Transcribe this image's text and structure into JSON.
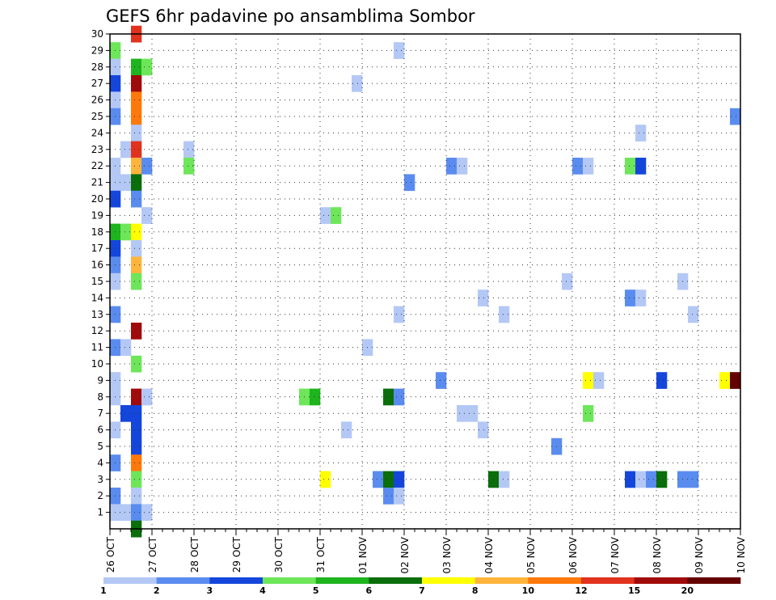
{
  "chart_data": {
    "type": "heatmap",
    "title": "GEFS 6hr padavine po ansamblima Sombor",
    "xlabel": "",
    "ylabel": "",
    "x_tick_labels": [
      "26 OCT",
      "27 OCT",
      "28 OCT",
      "29 OCT",
      "30 OCT",
      "31 OCT",
      "01 NOV",
      "02 NOV",
      "03 NOV",
      "04 NOV",
      "05 NOV",
      "06 NOV",
      "07 NOV",
      "08 NOV",
      "09 NOV",
      "10 NOV"
    ],
    "y_tick_labels": [
      "1",
      "2",
      "3",
      "4",
      "5",
      "6",
      "7",
      "8",
      "9",
      "10",
      "11",
      "12",
      "13",
      "14",
      "15",
      "16",
      "17",
      "18",
      "19",
      "20",
      "21",
      "22",
      "23",
      "24",
      "25",
      "26",
      "27",
      "28",
      "29",
      "30"
    ],
    "x_steps_per_day": 4,
    "y_range": [
      1,
      30
    ],
    "grid": true,
    "legend_position": "bottom",
    "colorbar": {
      "labels": [
        "1",
        "2",
        "3",
        "4",
        "5",
        "6",
        "7",
        "8",
        "10",
        "12",
        "15",
        "20"
      ],
      "colors": [
        "#b4c8f5",
        "#5a8cf0",
        "#1446dc",
        "#6ee65a",
        "#1eb41e",
        "#0a6e0a",
        "#ffff00",
        "#ffb43c",
        "#ff780a",
        "#e1321e",
        "#a00a0a",
        "#640000"
      ]
    },
    "cells": [
      {
        "x": 0,
        "y": 29,
        "c": 3
      },
      {
        "x": 0,
        "y": 28,
        "c": 0
      },
      {
        "x": 0,
        "y": 27,
        "c": 2
      },
      {
        "x": 0,
        "y": 26,
        "c": 0
      },
      {
        "x": 0,
        "y": 25,
        "c": 1
      },
      {
        "x": 0,
        "y": 22,
        "c": 0
      },
      {
        "x": 0,
        "y": 21,
        "c": 0
      },
      {
        "x": 0,
        "y": 20,
        "c": 2
      },
      {
        "x": 0,
        "y": 18,
        "c": 4
      },
      {
        "x": 0,
        "y": 17,
        "c": 2
      },
      {
        "x": 0,
        "y": 16,
        "c": 1
      },
      {
        "x": 0,
        "y": 15,
        "c": 0
      },
      {
        "x": 0,
        "y": 13,
        "c": 1
      },
      {
        "x": 0,
        "y": 11,
        "c": 1
      },
      {
        "x": 0,
        "y": 9,
        "c": 0
      },
      {
        "x": 0,
        "y": 8,
        "c": 0
      },
      {
        "x": 0,
        "y": 6,
        "c": 0
      },
      {
        "x": 0,
        "y": 4,
        "c": 1
      },
      {
        "x": 0,
        "y": 2,
        "c": 1
      },
      {
        "x": 0,
        "y": 1,
        "c": 0
      },
      {
        "x": 1,
        "y": 23,
        "c": 0
      },
      {
        "x": 1,
        "y": 21,
        "c": 0
      },
      {
        "x": 1,
        "y": 18,
        "c": 3
      },
      {
        "x": 1,
        "y": 11,
        "c": 0
      },
      {
        "x": 1,
        "y": 7,
        "c": 2
      },
      {
        "x": 1,
        "y": 1,
        "c": 0
      },
      {
        "x": 2,
        "y": 30,
        "c": 9
      },
      {
        "x": 2,
        "y": 28,
        "c": 4
      },
      {
        "x": 2,
        "y": 27,
        "c": 10
      },
      {
        "x": 2,
        "y": 26,
        "c": 8
      },
      {
        "x": 2,
        "y": 25,
        "c": 8
      },
      {
        "x": 2,
        "y": 24,
        "c": 0
      },
      {
        "x": 2,
        "y": 23,
        "c": 9
      },
      {
        "x": 2,
        "y": 22,
        "c": 7
      },
      {
        "x": 2,
        "y": 21,
        "c": 5
      },
      {
        "x": 2,
        "y": 20,
        "c": 1
      },
      {
        "x": 2,
        "y": 18,
        "c": 6
      },
      {
        "x": 2,
        "y": 17,
        "c": 0
      },
      {
        "x": 2,
        "y": 16,
        "c": 7
      },
      {
        "x": 2,
        "y": 15,
        "c": 3
      },
      {
        "x": 2,
        "y": 12,
        "c": 10
      },
      {
        "x": 2,
        "y": 10,
        "c": 3
      },
      {
        "x": 2,
        "y": 8,
        "c": 10
      },
      {
        "x": 2,
        "y": 7,
        "c": 2
      },
      {
        "x": 2,
        "y": 6,
        "c": 2
      },
      {
        "x": 2,
        "y": 5,
        "c": 2
      },
      {
        "x": 2,
        "y": 4,
        "c": 8
      },
      {
        "x": 2,
        "y": 3,
        "c": 3
      },
      {
        "x": 2,
        "y": 2,
        "c": 0
      },
      {
        "x": 2,
        "y": 1,
        "c": 1
      },
      {
        "x": 2,
        "y": 0,
        "c": 5
      },
      {
        "x": 3,
        "y": 28,
        "c": 3
      },
      {
        "x": 3,
        "y": 22,
        "c": 1
      },
      {
        "x": 3,
        "y": 19,
        "c": 0
      },
      {
        "x": 3,
        "y": 8,
        "c": 0
      },
      {
        "x": 3,
        "y": 1,
        "c": 0
      },
      {
        "x": 7,
        "y": 23,
        "c": 0
      },
      {
        "x": 7,
        "y": 22,
        "c": 3
      },
      {
        "x": 18,
        "y": 8,
        "c": 3
      },
      {
        "x": 19,
        "y": 8,
        "c": 4
      },
      {
        "x": 20,
        "y": 19,
        "c": 0
      },
      {
        "x": 20,
        "y": 3,
        "c": 6
      },
      {
        "x": 21,
        "y": 19,
        "c": 3
      },
      {
        "x": 22,
        "y": 6,
        "c": 0
      },
      {
        "x": 23,
        "y": 27,
        "c": 0
      },
      {
        "x": 24,
        "y": 11,
        "c": 0
      },
      {
        "x": 25,
        "y": 3,
        "c": 1
      },
      {
        "x": 26,
        "y": 8,
        "c": 5
      },
      {
        "x": 26,
        "y": 3,
        "c": 5
      },
      {
        "x": 26,
        "y": 2,
        "c": 1
      },
      {
        "x": 27,
        "y": 29,
        "c": 0
      },
      {
        "x": 27,
        "y": 13,
        "c": 0
      },
      {
        "x": 27,
        "y": 8,
        "c": 1
      },
      {
        "x": 27,
        "y": 3,
        "c": 2
      },
      {
        "x": 27,
        "y": 2,
        "c": 0
      },
      {
        "x": 28,
        "y": 21,
        "c": 1
      },
      {
        "x": 31,
        "y": 9,
        "c": 1
      },
      {
        "x": 32,
        "y": 22,
        "c": 1
      },
      {
        "x": 33,
        "y": 22,
        "c": 0
      },
      {
        "x": 33,
        "y": 7,
        "c": 0
      },
      {
        "x": 34,
        "y": 7,
        "c": 0
      },
      {
        "x": 35,
        "y": 14,
        "c": 0
      },
      {
        "x": 35,
        "y": 6,
        "c": 0
      },
      {
        "x": 36,
        "y": 3,
        "c": 5
      },
      {
        "x": 37,
        "y": 13,
        "c": 0
      },
      {
        "x": 37,
        "y": 3,
        "c": 0
      },
      {
        "x": 42,
        "y": 5,
        "c": 1
      },
      {
        "x": 43,
        "y": 15,
        "c": 0
      },
      {
        "x": 44,
        "y": 22,
        "c": 1
      },
      {
        "x": 45,
        "y": 22,
        "c": 0
      },
      {
        "x": 45,
        "y": 9,
        "c": 6
      },
      {
        "x": 45,
        "y": 7,
        "c": 3
      },
      {
        "x": 46,
        "y": 9,
        "c": 0
      },
      {
        "x": 49,
        "y": 22,
        "c": 3
      },
      {
        "x": 49,
        "y": 14,
        "c": 1
      },
      {
        "x": 49,
        "y": 3,
        "c": 2
      },
      {
        "x": 50,
        "y": 24,
        "c": 0
      },
      {
        "x": 50,
        "y": 22,
        "c": 2
      },
      {
        "x": 50,
        "y": 14,
        "c": 0
      },
      {
        "x": 50,
        "y": 3,
        "c": 0
      },
      {
        "x": 51,
        "y": 3,
        "c": 1
      },
      {
        "x": 52,
        "y": 9,
        "c": 2
      },
      {
        "x": 52,
        "y": 3,
        "c": 5
      },
      {
        "x": 54,
        "y": 15,
        "c": 0
      },
      {
        "x": 54,
        "y": 3,
        "c": 1
      },
      {
        "x": 55,
        "y": 13,
        "c": 0
      },
      {
        "x": 55,
        "y": 3,
        "c": 1
      },
      {
        "x": 58,
        "y": 9,
        "c": 6
      },
      {
        "x": 59,
        "y": 25,
        "c": 1
      },
      {
        "x": 59,
        "y": 9,
        "c": 11
      }
    ]
  }
}
